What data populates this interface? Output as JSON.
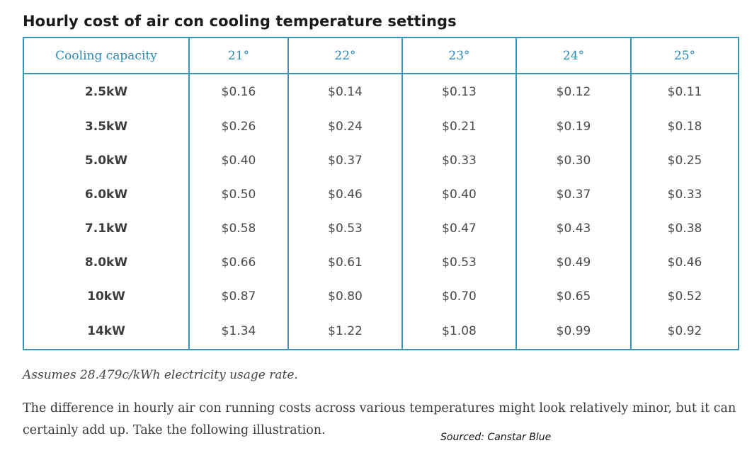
{
  "title": "Hourly cost of air con cooling temperature settings",
  "table": {
    "headers": [
      "Cooling capacity",
      "21°",
      "22°",
      "23°",
      "24°",
      "25°"
    ],
    "rows": [
      {
        "capacity": "2.5kW",
        "costs": [
          "$0.16",
          "$0.14",
          "$0.13",
          "$0.12",
          "$0.11"
        ]
      },
      {
        "capacity": "3.5kW",
        "costs": [
          "$0.26",
          "$0.24",
          "$0.21",
          "$0.19",
          "$0.18"
        ]
      },
      {
        "capacity": "5.0kW",
        "costs": [
          "$0.40",
          "$0.37",
          "$0.33",
          "$0.30",
          "$0.25"
        ]
      },
      {
        "capacity": "6.0kW",
        "costs": [
          "$0.50",
          "$0.46",
          "$0.40",
          "$0.37",
          "$0.33"
        ]
      },
      {
        "capacity": "7.1kW",
        "costs": [
          "$0.58",
          "$0.53",
          "$0.47",
          "$0.43",
          "$0.38"
        ]
      },
      {
        "capacity": "8.0kW",
        "costs": [
          "$0.66",
          "$0.61",
          "$0.53",
          "$0.49",
          "$0.46"
        ]
      },
      {
        "capacity": "10kW",
        "costs": [
          "$0.87",
          "$0.80",
          "$0.70",
          "$0.65",
          "$0.52"
        ]
      },
      {
        "capacity": "14kW",
        "costs": [
          "$1.34",
          "$1.22",
          "$1.08",
          "$0.99",
          "$0.92"
        ]
      }
    ]
  },
  "note": "Assumes 28.479c/kWh electricity usage rate.",
  "paragraph": "The difference in hourly air con running costs across various temperatures might look relatively minor, but it can certainly add up. Take the following illustration.",
  "source": "Sourced: Canstar Blue",
  "colors": {
    "accent": "#3a93b6",
    "header_text": "#2b8ab5"
  }
}
